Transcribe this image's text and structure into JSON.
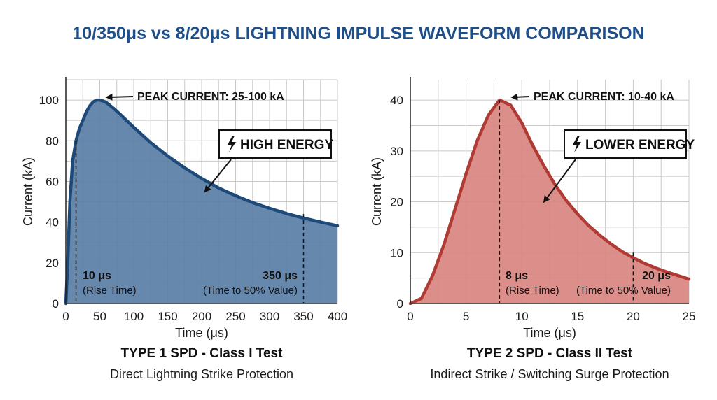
{
  "title": "10/350μs vs 8/20μs LIGHTNING IMPULSE WAVEFORM COMPARISON",
  "colors": {
    "title": "#1e4f8a",
    "grid": "#c8c8c8"
  },
  "chart_data": [
    {
      "type": "area",
      "xlabel": "Time (μs)",
      "ylabel": "Current (kA)",
      "xlim": [
        0,
        400
      ],
      "ylim": [
        0,
        110
      ],
      "xticks": [
        0,
        50,
        100,
        150,
        200,
        250,
        300,
        350,
        400
      ],
      "yticks": [
        0,
        20,
        40,
        60,
        80,
        100
      ],
      "grid": true,
      "color": "#1e4a7a",
      "fill": "#5a7ea6",
      "series": [
        {
          "x": [
            0,
            3,
            6,
            10,
            15,
            20,
            25,
            30,
            35,
            40,
            45,
            50,
            55,
            60,
            70,
            80,
            90,
            100,
            125,
            150,
            175,
            200,
            225,
            250,
            275,
            300,
            325,
            350,
            375,
            400
          ],
          "values": [
            0,
            22,
            50,
            70,
            80,
            86,
            90,
            94,
            97,
            99,
            100,
            100,
            99.5,
            98.7,
            96,
            93,
            89.8,
            86.6,
            79,
            72.5,
            66.7,
            61.5,
            56.8,
            53,
            49.6,
            46.8,
            44.2,
            42,
            40,
            38.2
          ]
        }
      ],
      "peak_label": "PEAK CURRENT: 25-100 kA",
      "peak_point": [
        50,
        100
      ],
      "energy_label": "HIGH ENERGY",
      "energy_target": [
        205,
        55
      ],
      "markers": [
        {
          "x": 15,
          "y": 80,
          "value": "10 μs",
          "desc": "(Rise Time)"
        },
        {
          "x": 350,
          "y": 44,
          "value": "350 μs",
          "desc": "(Time to 50% Value)"
        }
      ],
      "caption_title": "TYPE 1 SPD - Class I Test",
      "caption_sub": "Direct Lightning Strike Protection"
    },
    {
      "type": "area",
      "xlabel": "Time (μs)",
      "ylabel": "Current (kA)",
      "xlim": [
        0,
        25
      ],
      "ylim": [
        0,
        44
      ],
      "xticks": [
        0,
        5,
        10,
        15,
        20,
        25
      ],
      "yticks": [
        0,
        10,
        20,
        30,
        40
      ],
      "grid": true,
      "color": "#b03a34",
      "fill": "#d98580",
      "series": [
        {
          "x": [
            0,
            1,
            2,
            3,
            4,
            5,
            6,
            7,
            8,
            9,
            10,
            11,
            12,
            13,
            14,
            15,
            16,
            17,
            18,
            19,
            20,
            21,
            22,
            23,
            24,
            25
          ],
          "values": [
            0,
            1,
            5.5,
            11.5,
            18.5,
            25.5,
            32,
            37,
            40,
            39,
            35.5,
            31,
            27,
            23.3,
            20.2,
            17.6,
            15.3,
            13.4,
            11.7,
            10.2,
            9,
            7.9,
            7,
            6.2,
            5.5,
            4.8
          ]
        }
      ],
      "peak_label": "PEAK CURRENT: 10-40 kA",
      "peak_point": [
        8.5,
        40
      ],
      "energy_label": "LOWER ENERGY",
      "energy_target": [
        12,
        20
      ],
      "markers": [
        {
          "x": 8,
          "y": 40,
          "value": "8 μs",
          "desc": "(Rise Time)"
        },
        {
          "x": 20,
          "y": 10,
          "value": "20 μs",
          "desc": "(Time to 50% Value)"
        }
      ],
      "caption_title": "TYPE 2 SPD - Class II Test",
      "caption_sub": "Indirect Strike / Switching Surge Protection"
    }
  ]
}
